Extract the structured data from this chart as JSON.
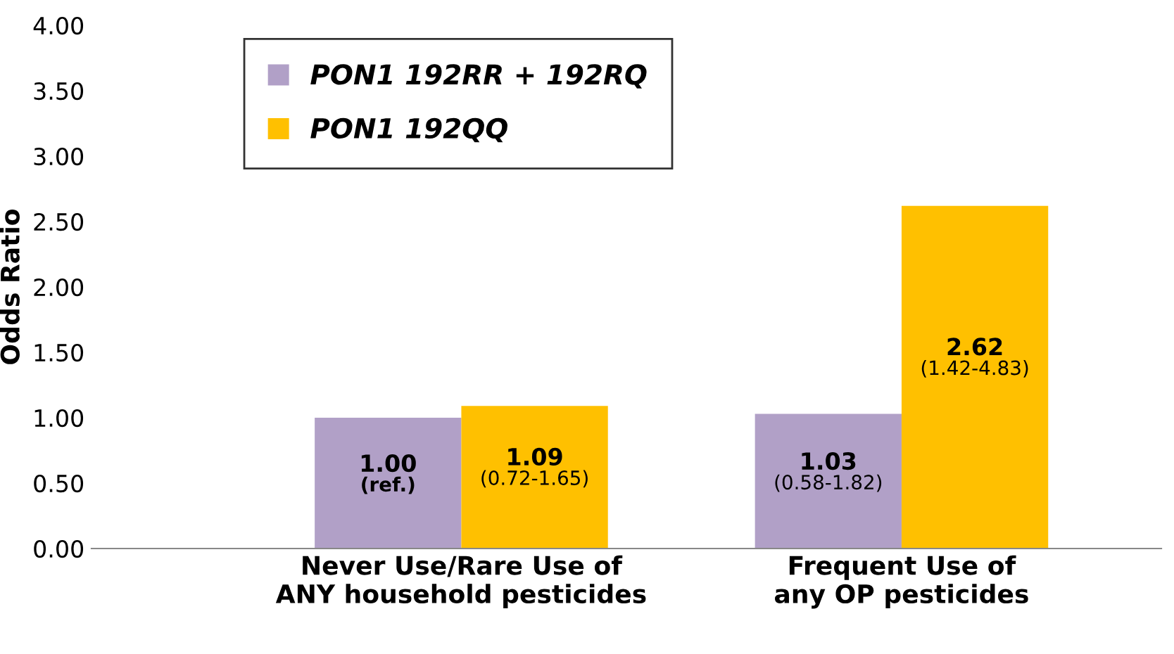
{
  "chart_data": {
    "type": "bar",
    "ylabel": "Odds Ratio",
    "categories": [
      "Never Use/Rare Use of\nANY household pesticides",
      "Frequent Use of\nany OP pesticides"
    ],
    "series": [
      {
        "name": "PON1 192RR + 192RQ",
        "color": "#b1a0c7",
        "values": [
          1.0,
          1.03
        ],
        "value_labels": [
          "1.00\n(ref.)",
          "1.03\n(0.58-1.82)"
        ]
      },
      {
        "name": "PON1 192QQ",
        "color": "#ffc000",
        "values": [
          1.09,
          2.62
        ],
        "value_labels": [
          "1.09\n(0.72-1.65)",
          "2.62\n(1.42-4.83)"
        ]
      }
    ],
    "ylim": [
      0,
      4
    ],
    "yticks": [
      {
        "value": 0,
        "label": "0.00"
      },
      {
        "value": 0.5,
        "label": "0.50"
      },
      {
        "value": 1,
        "label": "1.00"
      },
      {
        "value": 1.5,
        "label": "1.50"
      },
      {
        "value": 2,
        "label": "2.00"
      },
      {
        "value": 2.5,
        "label": "2.50"
      },
      {
        "value": 3,
        "label": "3.00"
      },
      {
        "value": 3.5,
        "label": "3.50"
      },
      {
        "value": 4,
        "label": "4.00"
      }
    ],
    "grid": false,
    "legend": "top left"
  }
}
